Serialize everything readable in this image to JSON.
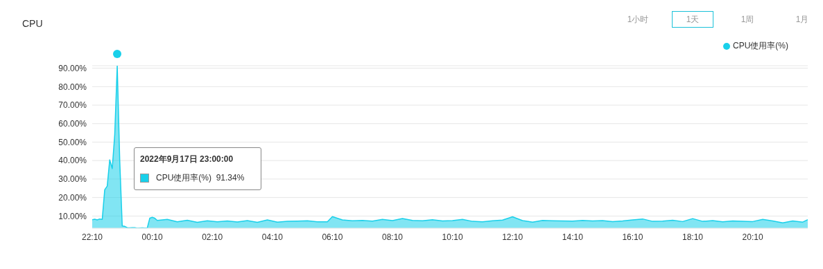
{
  "chart_data": {
    "type": "area",
    "title": "CPU",
    "legend": "top right",
    "marker": "none",
    "grid": "y",
    "xlim": [
      "2022-09-17T22:10",
      "2022-09-18T22:00"
    ],
    "xticks": [
      {
        "value": "2022-09-17T22:10",
        "label": "22:10"
      },
      {
        "value": "2022-09-18T00:10",
        "label": "00:10"
      },
      {
        "value": "2022-09-18T02:10",
        "label": "02:10"
      },
      {
        "value": "2022-09-18T04:10",
        "label": "04:10"
      },
      {
        "value": "2022-09-18T06:10",
        "label": "06:10"
      },
      {
        "value": "2022-09-18T08:10",
        "label": "08:10"
      },
      {
        "value": "2022-09-18T10:10",
        "label": "10:10"
      },
      {
        "value": "2022-09-18T12:10",
        "label": "12:10"
      },
      {
        "value": "2022-09-18T14:10",
        "label": "14:10"
      },
      {
        "value": "2022-09-18T16:10",
        "label": "16:10"
      },
      {
        "value": "2022-09-18T18:10",
        "label": "18:10"
      },
      {
        "value": "2022-09-18T20:10",
        "label": "20:10"
      }
    ],
    "ylim": [
      3.4,
      91.34
    ],
    "yticks": [
      {
        "value": 10,
        "label": "10.00%"
      },
      {
        "value": 20,
        "label": "20.00%"
      },
      {
        "value": 30,
        "label": "30.00%"
      },
      {
        "value": 40,
        "label": "40.00%"
      },
      {
        "value": 50,
        "label": "50.00%"
      },
      {
        "value": 60,
        "label": "60.00%"
      },
      {
        "value": 70,
        "label": "70.00%"
      },
      {
        "value": 80,
        "label": "80.00%"
      },
      {
        "value": 90,
        "label": "90.00%"
      }
    ],
    "series": [
      {
        "name": "CPU使用率(%)",
        "color": "#19d0ea",
        "x": [
          "2022-09-17T22:10",
          "2022-09-17T22:15",
          "2022-09-17T22:20",
          "2022-09-17T22:25",
          "2022-09-17T22:30",
          "2022-09-17T22:35",
          "2022-09-17T22:40",
          "2022-09-17T22:45",
          "2022-09-17T22:50",
          "2022-09-17T22:55",
          "2022-09-17T23:00",
          "2022-09-17T23:05",
          "2022-09-17T23:10",
          "2022-09-17T23:15",
          "2022-09-17T23:20",
          "2022-09-17T23:25",
          "2022-09-17T23:30",
          "2022-09-17T23:35",
          "2022-09-17T23:40",
          "2022-09-17T23:45",
          "2022-09-17T23:50",
          "2022-09-17T23:55",
          "2022-09-18T00:00",
          "2022-09-18T00:05",
          "2022-09-18T00:10",
          "2022-09-18T00:15",
          "2022-09-18T00:20",
          "2022-09-18T00:40",
          "2022-09-18T01:00",
          "2022-09-18T01:20",
          "2022-09-18T01:40",
          "2022-09-18T02:00",
          "2022-09-18T02:20",
          "2022-09-18T02:40",
          "2022-09-18T03:00",
          "2022-09-18T03:20",
          "2022-09-18T03:40",
          "2022-09-18T04:00",
          "2022-09-18T04:20",
          "2022-09-18T04:40",
          "2022-09-18T05:00",
          "2022-09-18T05:20",
          "2022-09-18T05:40",
          "2022-09-18T06:00",
          "2022-09-18T06:10",
          "2022-09-18T06:30",
          "2022-09-18T06:50",
          "2022-09-18T07:10",
          "2022-09-18T07:30",
          "2022-09-18T07:50",
          "2022-09-18T08:10",
          "2022-09-18T08:30",
          "2022-09-18T08:50",
          "2022-09-18T09:10",
          "2022-09-18T09:30",
          "2022-09-18T09:50",
          "2022-09-18T10:10",
          "2022-09-18T10:30",
          "2022-09-18T10:50",
          "2022-09-18T11:10",
          "2022-09-18T11:30",
          "2022-09-18T11:50",
          "2022-09-18T12:10",
          "2022-09-18T12:30",
          "2022-09-18T12:50",
          "2022-09-18T13:10",
          "2022-09-18T13:30",
          "2022-09-18T13:50",
          "2022-09-18T14:10",
          "2022-09-18T14:30",
          "2022-09-18T14:50",
          "2022-09-18T15:10",
          "2022-09-18T15:30",
          "2022-09-18T15:50",
          "2022-09-18T16:10",
          "2022-09-18T16:30",
          "2022-09-18T16:50",
          "2022-09-18T17:10",
          "2022-09-18T17:30",
          "2022-09-18T17:50",
          "2022-09-18T18:10",
          "2022-09-18T18:30",
          "2022-09-18T18:50",
          "2022-09-18T19:10",
          "2022-09-18T19:30",
          "2022-09-18T19:50",
          "2022-09-18T20:10",
          "2022-09-18T20:30",
          "2022-09-18T20:50",
          "2022-09-18T21:10",
          "2022-09-18T21:30",
          "2022-09-18T21:50",
          "2022-09-18T22:00"
        ],
        "values": [
          8.0,
          8.3,
          7.9,
          8.4,
          8.2,
          24.2,
          26.2,
          40.4,
          35.7,
          54,
          91.34,
          40,
          4.6,
          4.4,
          3.7,
          3.6,
          3.7,
          3.7,
          3.4,
          3.5,
          3.6,
          3.5,
          3.5,
          8.8,
          9.3,
          8.8,
          7.6,
          8.2,
          6.9,
          7.7,
          6.6,
          7.4,
          6.9,
          7.3,
          6.8,
          7.5,
          6.6,
          7.9,
          6.7,
          7.1,
          7.2,
          7.4,
          6.9,
          6.9,
          9.7,
          7.9,
          7.4,
          7.6,
          7.2,
          8.2,
          7.5,
          8.6,
          7.6,
          7.4,
          8.0,
          7.3,
          7.5,
          8.2,
          7.1,
          6.9,
          7.4,
          7.8,
          9.6,
          7.5,
          6.7,
          7.6,
          7.4,
          7.3,
          7.2,
          7.6,
          7.3,
          7.5,
          7.0,
          7.3,
          7.9,
          8.4,
          7.1,
          7.2,
          7.7,
          7.0,
          8.6,
          7.1,
          7.5,
          6.9,
          7.3,
          7.1,
          7.0,
          8.2,
          7.3,
          6.3,
          7.3,
          6.7,
          8.0
        ]
      }
    ],
    "annotations": [
      "1小时",
      "1天",
      "1周",
      "1月",
      "2022年9月17日 23:00:00",
      "CPU使用率(%)  91.34%"
    ]
  }
}
